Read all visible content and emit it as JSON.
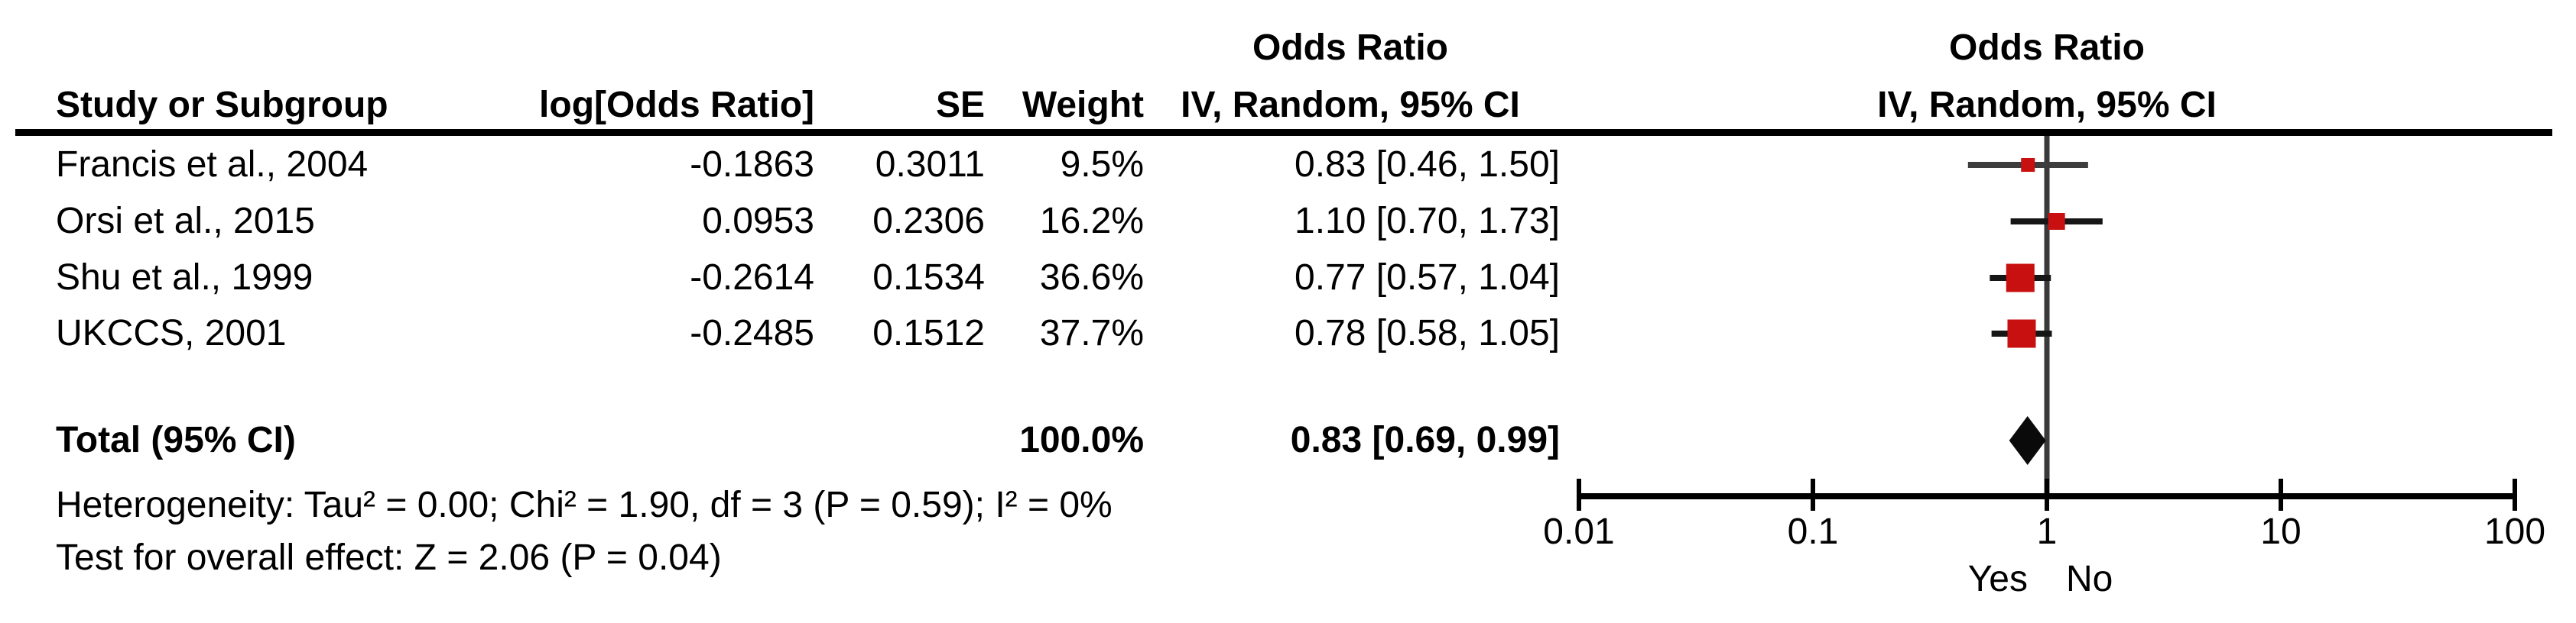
{
  "table": {
    "headers": {
      "study": "Study or Subgroup",
      "log_or": "log[Odds Ratio]",
      "se": "SE",
      "weight": "Weight",
      "or_col_line1": "Odds Ratio",
      "or_col_line2": "IV, Random, 95% CI"
    },
    "total_row": {
      "label": "Total (95% CI)",
      "weight": "100.0%",
      "or_ci": "0.83 [0.69, 0.99]"
    },
    "footnotes": {
      "heterogeneity": "Heterogeneity: Tau² = 0.00; Chi² = 1.90, df = 3 (P = 0.59); I² = 0%",
      "overall_effect": "Test for overall effect: Z = 2.06 (P = 0.04)"
    }
  },
  "plot": {
    "header_line1": "Odds Ratio",
    "header_line2": "IV, Random, 95% CI",
    "favours_left": "Yes",
    "favours_right": "No",
    "colors": {
      "square": "#C81010",
      "diamond": "#0A0A0A",
      "ci_line": "#161616",
      "ci_line_first": "#3D3D3D",
      "null_line": "#3A3A3A",
      "axis": "#000000"
    }
  },
  "chart_data": {
    "type": "forest",
    "effect_label": "Odds Ratio",
    "method_label": "IV, Random, 95% CI",
    "x_scale": "log10",
    "x_ticks": [
      0.01,
      0.1,
      1,
      10,
      100
    ],
    "x_tick_labels": [
      "0.01",
      "0.1",
      "1",
      "10",
      "100"
    ],
    "null_value": 1,
    "axis_labels": {
      "left_of_null": "Yes",
      "right_of_null": "No"
    },
    "studies": [
      {
        "name": "Francis et al., 2004",
        "log_or": "-0.1863",
        "se": "0.3011",
        "weight": "9.5%",
        "weight_pct": 9.5,
        "or": 0.83,
        "ci_low": 0.46,
        "ci_high": 1.5,
        "or_ci_text": "0.83 [0.46, 1.50]"
      },
      {
        "name": "Orsi et al., 2015",
        "log_or": "0.0953",
        "se": "0.2306",
        "weight": "16.2%",
        "weight_pct": 16.2,
        "or": 1.1,
        "ci_low": 0.7,
        "ci_high": 1.73,
        "or_ci_text": "1.10 [0.70, 1.73]"
      },
      {
        "name": "Shu et al., 1999",
        "log_or": "-0.2614",
        "se": "0.1534",
        "weight": "36.6%",
        "weight_pct": 36.6,
        "or": 0.77,
        "ci_low": 0.57,
        "ci_high": 1.04,
        "or_ci_text": "0.77 [0.57, 1.04]"
      },
      {
        "name": "UKCCS, 2001",
        "log_or": "-0.2485",
        "se": "0.1512",
        "weight": "37.7%",
        "weight_pct": 37.7,
        "or": 0.78,
        "ci_low": 0.58,
        "ci_high": 1.05,
        "or_ci_text": "0.78 [0.58, 1.05]"
      }
    ],
    "total": {
      "or": 0.83,
      "ci_low": 0.69,
      "ci_high": 0.99,
      "weight_pct": 100.0
    }
  }
}
